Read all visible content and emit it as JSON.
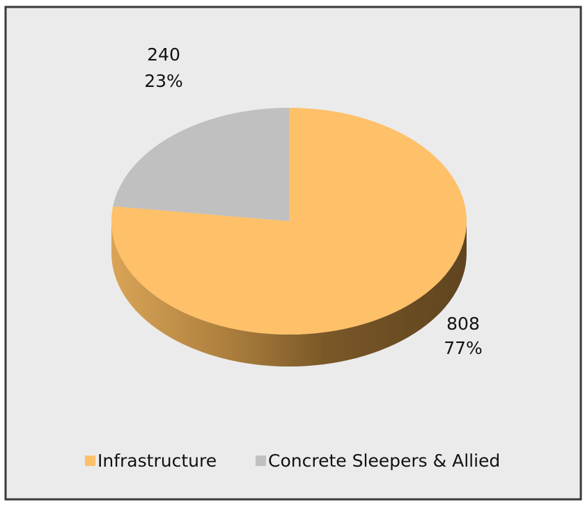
{
  "chart_data": {
    "type": "pie3d",
    "categories": [
      "Infrastructure",
      "Concrete Sleepers & Allied"
    ],
    "values": [
      808,
      240
    ],
    "percent_labels": [
      "77%",
      "23%"
    ],
    "colors": [
      "#fec068",
      "#c0c0c0"
    ],
    "legend": "bottom"
  }
}
